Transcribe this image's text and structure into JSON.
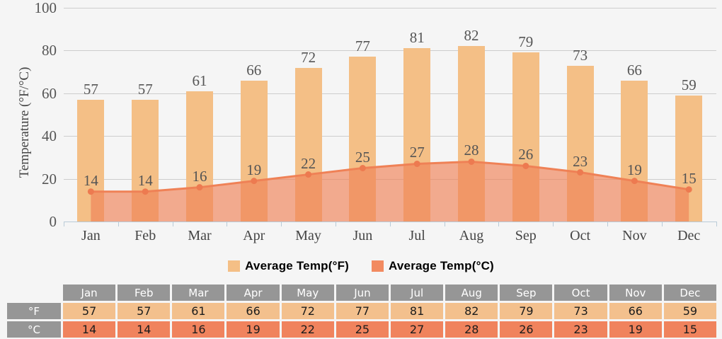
{
  "chart_data": {
    "type": "bar",
    "title": "",
    "ylabel": "Temperature (°F/°C)",
    "ylim": [
      0,
      100
    ],
    "yticks": [
      0,
      20,
      40,
      60,
      80,
      100
    ],
    "grid": true,
    "legend_position": "bottom",
    "categories": [
      "Jan",
      "Feb",
      "Mar",
      "Apr",
      "May",
      "Jun",
      "Jul",
      "Aug",
      "Sep",
      "Oct",
      "Nov",
      "Dec"
    ],
    "series": [
      {
        "name": "Average Temp(°F)",
        "type": "bar",
        "values": [
          57,
          57,
          61,
          66,
          72,
          77,
          81,
          82,
          79,
          73,
          66,
          59
        ]
      },
      {
        "name": "Average Temp(°C)",
        "type": "area",
        "values": [
          14,
          14,
          16,
          19,
          22,
          25,
          27,
          28,
          26,
          23,
          19,
          15
        ]
      }
    ]
  },
  "legend": {
    "items": [
      {
        "label": "Average Temp(°F)",
        "color": "#F4BF86"
      },
      {
        "label": "Average Temp(°C)",
        "color": "#F28A60"
      }
    ]
  },
  "table": {
    "months": [
      "Jan",
      "Feb",
      "Mar",
      "Apr",
      "May",
      "Jun",
      "Jul",
      "Aug",
      "Sep",
      "Oct",
      "Nov",
      "Dec"
    ],
    "rows": [
      {
        "label": "°F",
        "values": [
          57,
          57,
          61,
          66,
          72,
          77,
          81,
          82,
          79,
          73,
          66,
          59
        ]
      },
      {
        "label": "°C",
        "values": [
          14,
          14,
          16,
          19,
          22,
          25,
          27,
          28,
          26,
          23,
          19,
          15
        ]
      }
    ]
  },
  "colors": {
    "background": "#F5F5F5",
    "bar_fill": "#F4BF86",
    "area_line": "#EF8156",
    "area_fill": "rgba(240,129,86,0.65)",
    "marker": "#ED7A50",
    "gridline": "#CDCDCD",
    "axis_line": "#B9CBD8",
    "chart_text": "#555555",
    "table_header_bg": "#969696",
    "table_f_bg": "#F3C08D",
    "table_c_bg": "#F0835D"
  }
}
